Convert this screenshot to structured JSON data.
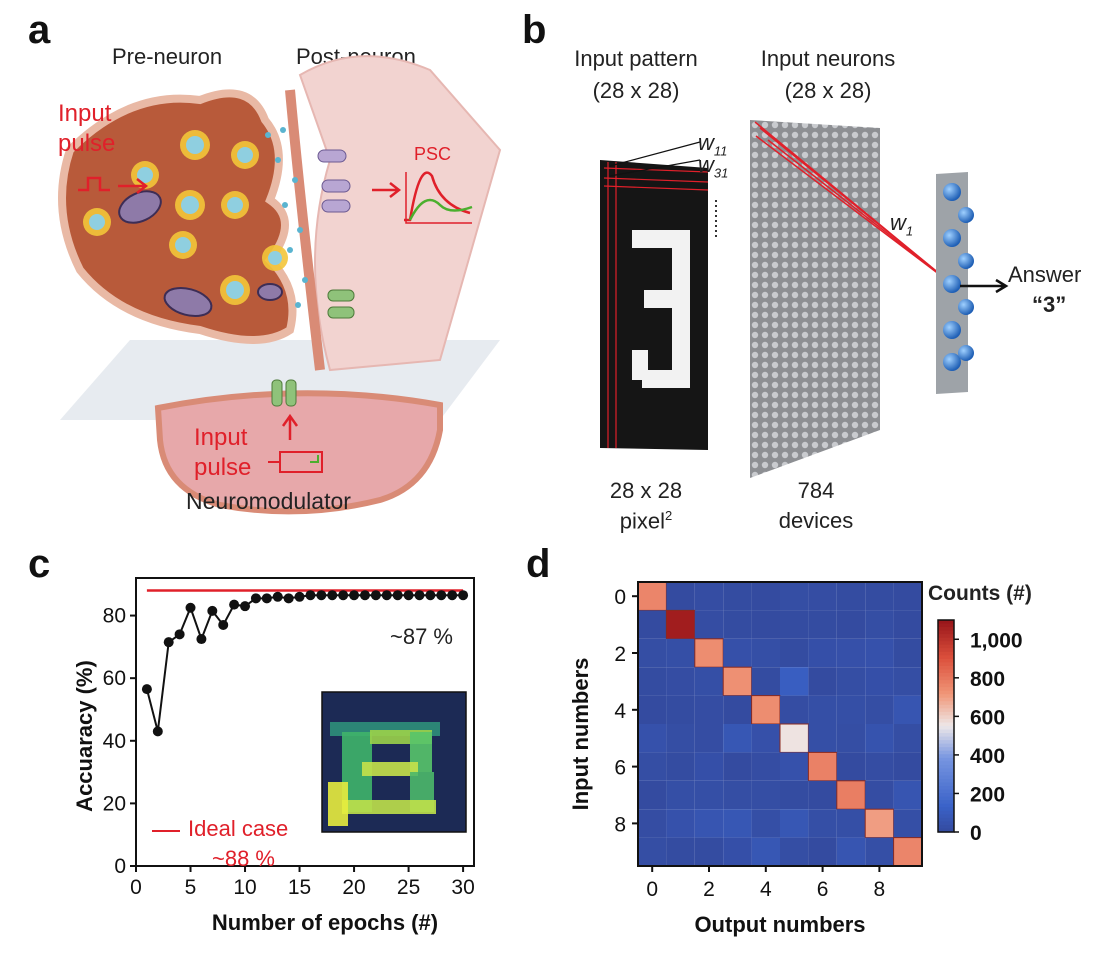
{
  "panels": {
    "a": {
      "letter": "a",
      "pre_neuron": "Pre-neuron",
      "post_neuron": "Post-neuron",
      "input_pulse_top_1": "Input",
      "input_pulse_top_2": "pulse",
      "psc": "PSC",
      "input_pulse_bottom_1": "Input",
      "input_pulse_bottom_2": "pulse",
      "neuromodulator": "Neuromodulator",
      "colors": {
        "cell": "#b85a3a",
        "vesicle": "#f3c53a",
        "annotation_red": "#e0202a"
      }
    },
    "b": {
      "letter": "b",
      "input_pattern_1": "Input pattern",
      "input_pattern_2": "(28 x 28)",
      "input_neurons_1": "Input neurons",
      "input_neurons_2": "(28 x 28)",
      "w11_base": "w",
      "w11_sub": "11",
      "w31_base": "w",
      "w31_sub": "31",
      "w1_base": "w",
      "w1_sub": "1",
      "answer_1": "Answer",
      "answer_2": "“3”",
      "pixels_1": "28 x 28",
      "pixels_2": "pixel",
      "pixels_sup": "2",
      "devices_1": "784",
      "devices_2": "devices"
    },
    "c": {
      "letter": "c",
      "annotation_measured": "~87 %",
      "legend_label": "Ideal case",
      "legend_value": "~88 %"
    },
    "d": {
      "letter": "d",
      "colorbar_title": "Counts (#)"
    }
  },
  "chart_data": [
    {
      "panel": "c",
      "type": "line",
      "xlabel": "Number of epochs (#)",
      "ylabel": "Accuaracy (%)",
      "xlim": [
        0,
        31
      ],
      "ylim": [
        0,
        92
      ],
      "xticks": [
        "0",
        "5",
        "10",
        "15",
        "20",
        "25",
        "30"
      ],
      "yticks": [
        "0",
        "20",
        "40",
        "60",
        "80"
      ],
      "series": [
        {
          "x": [
            1,
            2,
            3,
            4,
            5,
            6,
            7,
            8,
            9,
            10,
            11,
            12,
            13,
            14,
            15,
            16,
            17,
            18,
            19,
            20,
            21,
            22,
            23,
            24,
            25,
            26,
            27,
            28,
            29,
            30
          ],
          "values": [
            56.5,
            43,
            71.5,
            74,
            82.5,
            72.5,
            81.5,
            77,
            83.5,
            83,
            85.5,
            85.5,
            86,
            85.5,
            86,
            86.5,
            86.5,
            86.5,
            86.5,
            86.5,
            86.5,
            86.5,
            86.5,
            86.5,
            86.5,
            86.5,
            86.5,
            86.5,
            86.5,
            86.5
          ],
          "color": "#111111"
        }
      ],
      "reference_line": {
        "value": 88,
        "color": "#e0202a"
      }
    },
    {
      "panel": "d",
      "type": "heatmap",
      "xlabel": "Output numbers",
      "ylabel": "Input numbers",
      "xticks": [
        "0",
        "2",
        "4",
        "6",
        "8"
      ],
      "yticks": [
        "0",
        "2",
        "4",
        "6",
        "8"
      ],
      "colorbar_ticks": [
        "1,000",
        "800",
        "600",
        "400",
        "200",
        "0"
      ],
      "colorbar_range": [
        0,
        1100
      ],
      "rows": [
        [
          760,
          5,
          15,
          10,
          5,
          20,
          15,
          10,
          10,
          5
        ],
        [
          5,
          1070,
          15,
          10,
          5,
          10,
          10,
          5,
          20,
          5
        ],
        [
          20,
          25,
          740,
          35,
          25,
          10,
          30,
          35,
          40,
          10
        ],
        [
          10,
          15,
          25,
          730,
          10,
          110,
          5,
          20,
          30,
          20
        ],
        [
          5,
          10,
          15,
          5,
          740,
          15,
          25,
          25,
          20,
          60
        ],
        [
          40,
          20,
          15,
          70,
          35,
          560,
          25,
          20,
          50,
          20
        ],
        [
          20,
          10,
          30,
          5,
          15,
          40,
          770,
          5,
          15,
          5
        ],
        [
          5,
          25,
          25,
          20,
          20,
          10,
          5,
          780,
          15,
          60
        ],
        [
          15,
          40,
          60,
          70,
          25,
          70,
          25,
          25,
          700,
          25
        ],
        [
          20,
          10,
          10,
          30,
          70,
          20,
          5,
          60,
          25,
          760
        ]
      ]
    }
  ]
}
